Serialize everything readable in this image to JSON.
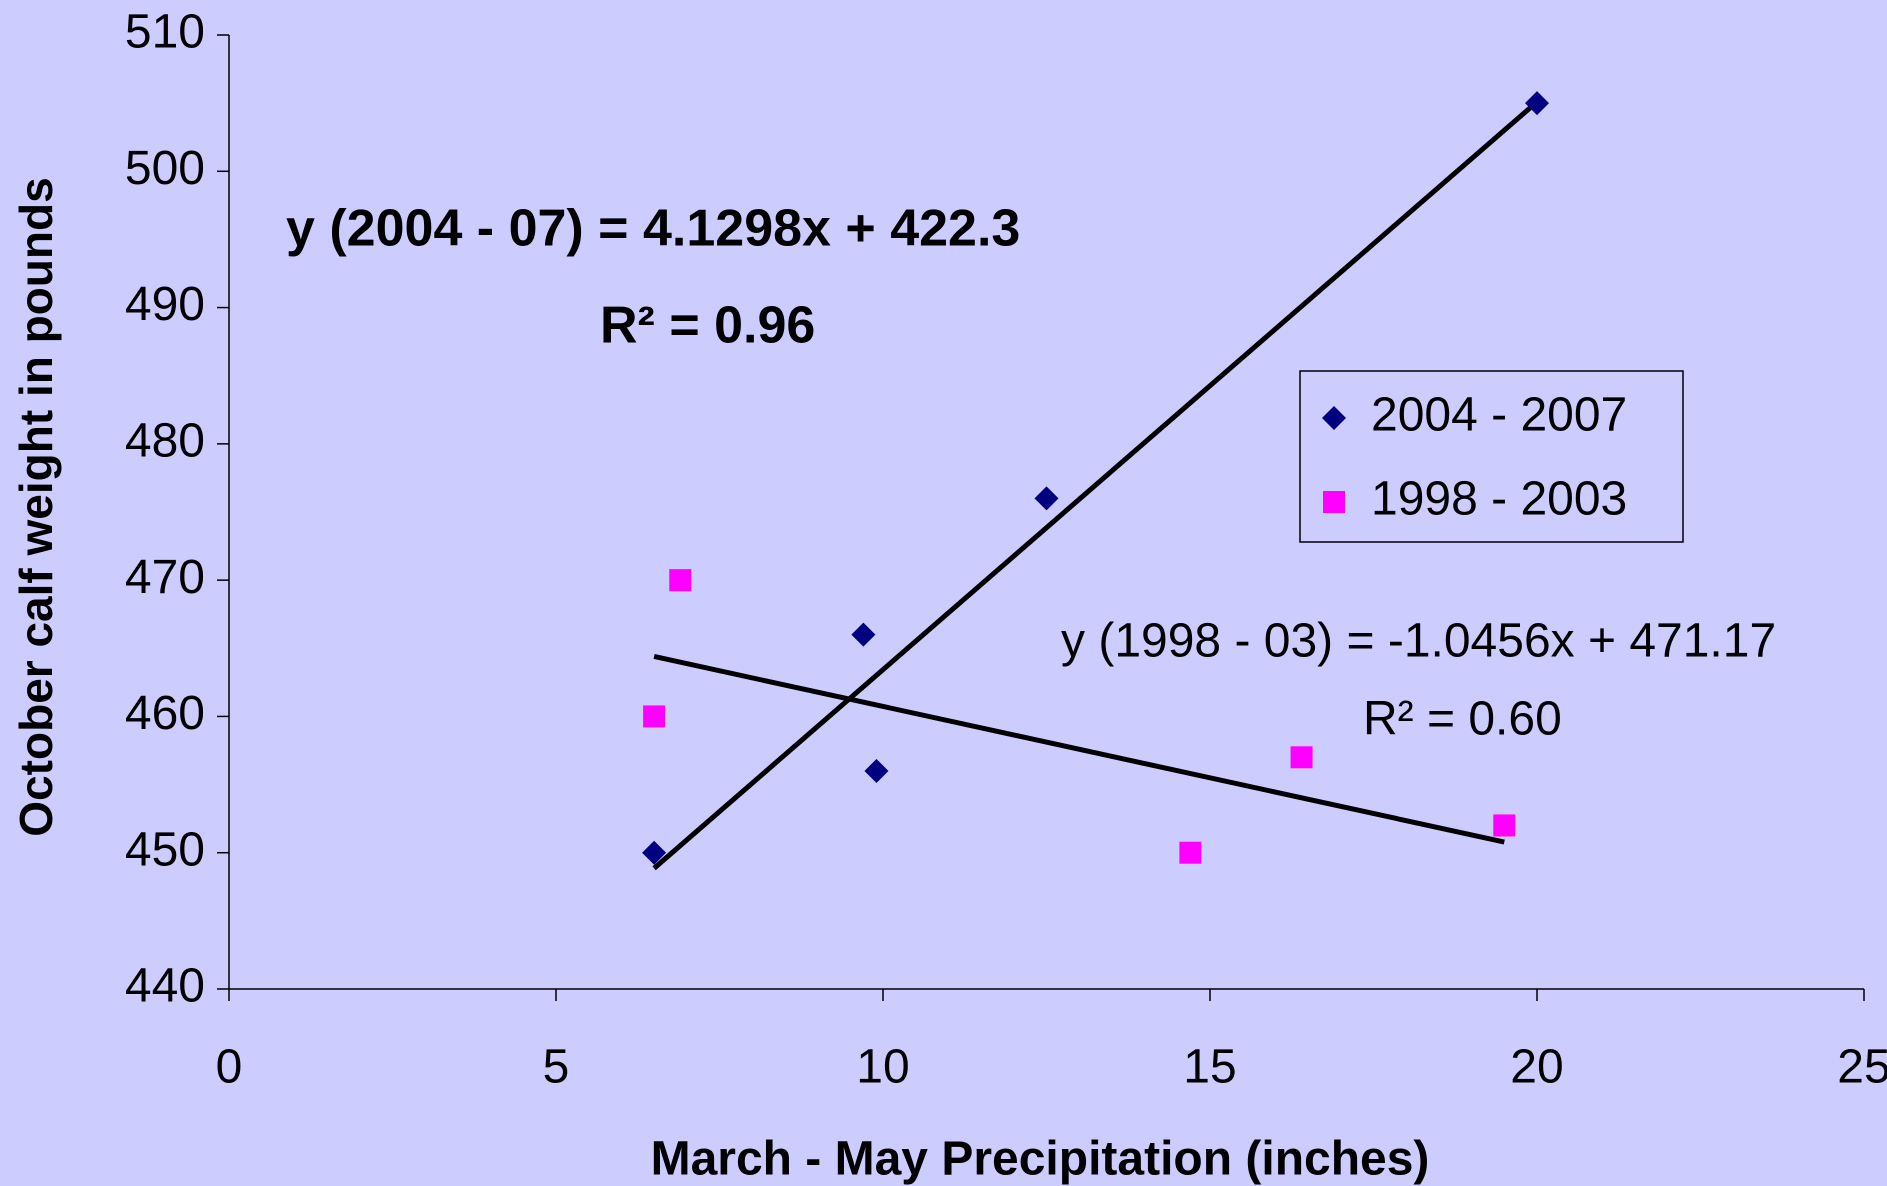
{
  "chart_data": {
    "type": "scatter",
    "xlabel": "March - May Precipitation (inches)",
    "ylabel": "October calf weight in pounds",
    "xlim": [
      0,
      25
    ],
    "xticks": [
      0,
      5,
      10,
      15,
      20,
      25
    ],
    "ylim": [
      440,
      510
    ],
    "yticks": [
      440,
      450,
      460,
      470,
      480,
      490,
      500,
      510
    ],
    "legend": "right",
    "trendline": "linear",
    "series": [
      {
        "name": "2004 - 2007",
        "color": "#000080",
        "marker": "diamond",
        "x": [
          6.5,
          9.7,
          9.9,
          12.5,
          20
        ],
        "values": [
          450,
          466,
          456,
          476,
          505
        ]
      },
      {
        "name": "1998 - 2003",
        "color": "#ff00ff",
        "marker": "square",
        "x": [
          6.5,
          6.9,
          14.7,
          16.4,
          19.5
        ],
        "values": [
          460,
          470,
          450,
          457,
          452
        ]
      }
    ],
    "annotations": [
      "y (2004 - 07)  = 4.1298x + 422.3",
      "R² = 0.96",
      "y (1998 - 03) = -1.0456x + 471.17",
      "R² = 0.60"
    ]
  }
}
